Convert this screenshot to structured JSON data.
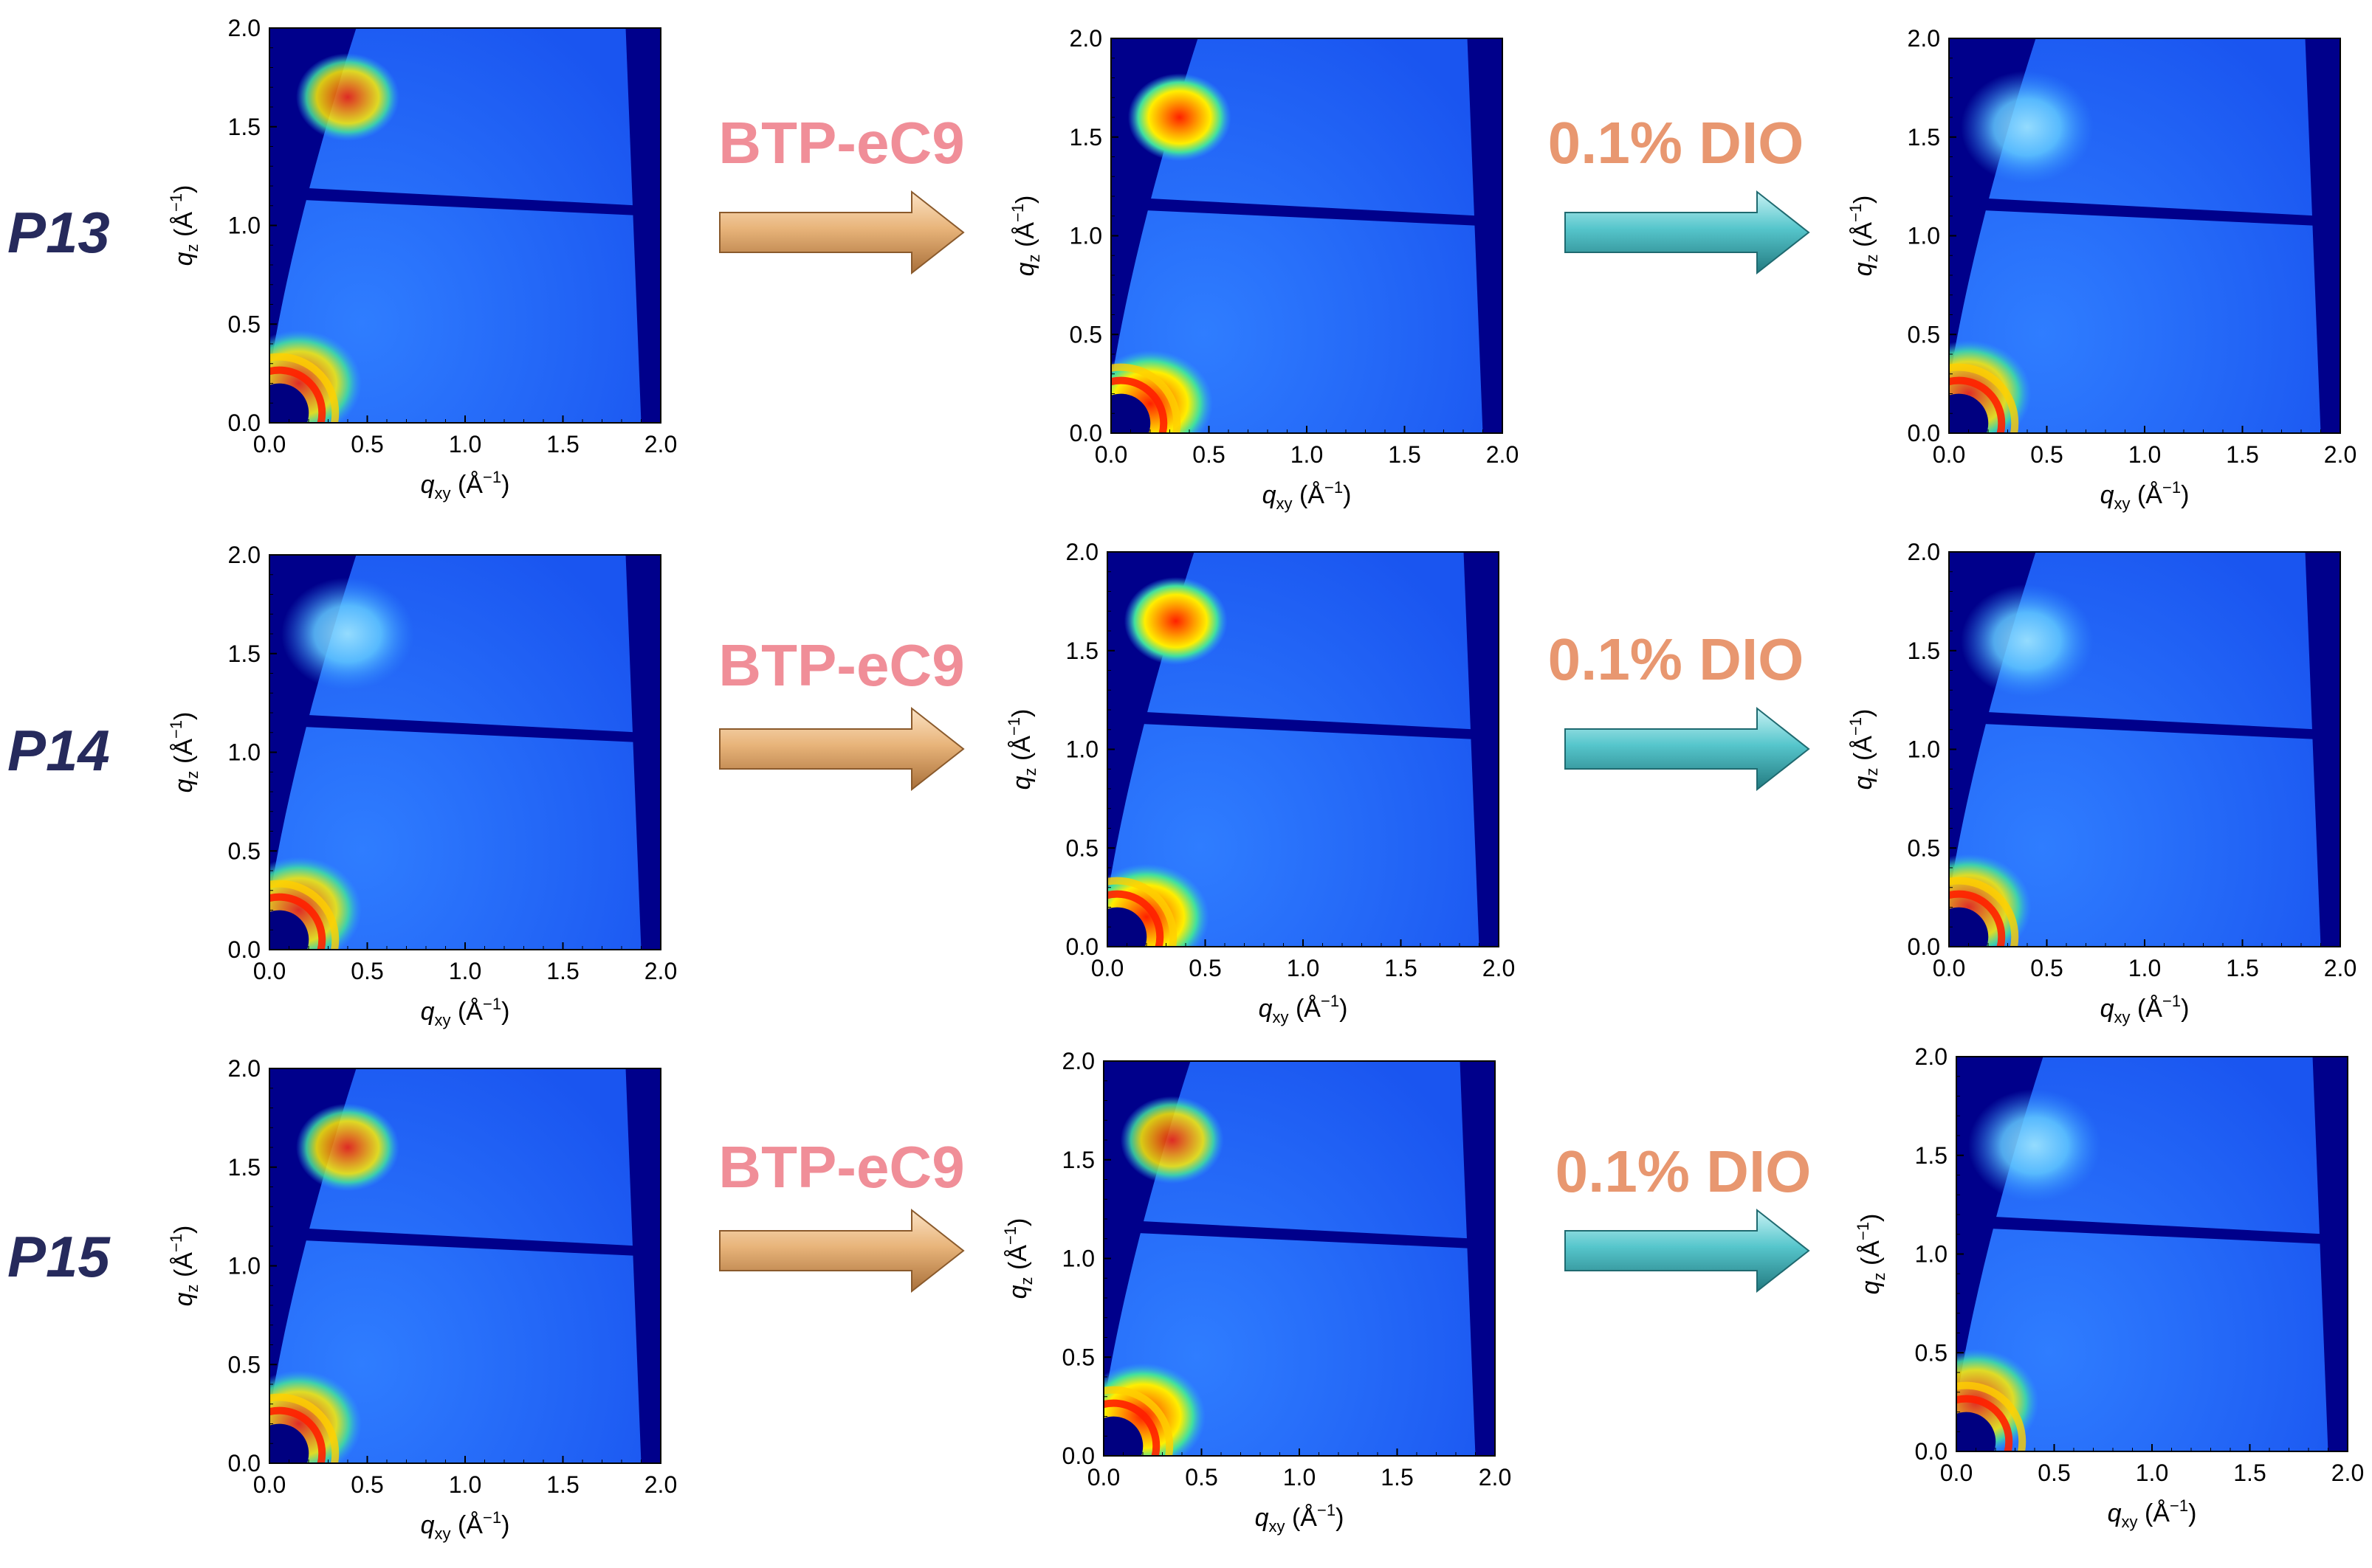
{
  "rows": [
    {
      "label": "P13",
      "step1_label": "BTP-eC9",
      "step2_label": "0.1% DIO"
    },
    {
      "label": "P14",
      "step1_label": "BTP-eC9",
      "step2_label": "0.1% DIO"
    },
    {
      "label": "P15",
      "step1_label": "BTP-eC9",
      "step2_label": "0.1% DIO"
    }
  ],
  "colors": {
    "btp_label": "#f08e98",
    "dio_label": "#e89770",
    "row_label": "#262a5c",
    "arrow_btp": "#e8b47a",
    "arrow_dio": "#56c6cc",
    "map_background": "#00008b",
    "map_field": "#1f63ff"
  },
  "chart_data": [
    {
      "type": "heatmap",
      "xlabel": "q_xy (Å^-1)",
      "ylabel": "q_z (Å^-1)",
      "xlim": [
        0,
        2.0
      ],
      "ylim": [
        0,
        2.0
      ],
      "xticks": [
        "0.0",
        "0.5",
        "1.0",
        "1.5",
        "2.0"
      ],
      "yticks": [
        "0.0",
        "0.5",
        "1.0",
        "1.5",
        "2.0"
      ],
      "colormap": "jet",
      "features": [
        {
          "name": "pi-pi stacking peak",
          "qxy": 0.4,
          "qz": 1.65,
          "intensity": "high"
        },
        {
          "name": "lamellar peaks",
          "qxy": 0.15,
          "qz": 0.2,
          "intensity": "high"
        }
      ]
    },
    {
      "type": "heatmap",
      "xlabel": "q_xy (Å^-1)",
      "ylabel": "q_z (Å^-1)",
      "xlim": [
        0,
        2.0
      ],
      "ylim": [
        0,
        2.0
      ],
      "xticks": [
        "0.0",
        "0.5",
        "1.0",
        "1.5",
        "2.0"
      ],
      "yticks": [
        "0.0",
        "0.5",
        "1.0",
        "1.5",
        "2.0"
      ],
      "colormap": "jet",
      "features": [
        {
          "name": "pi-pi stacking peak",
          "qxy": 0.35,
          "qz": 1.6,
          "intensity": "very high"
        },
        {
          "name": "lamellar peaks",
          "qxy": 0.2,
          "qz": 0.15,
          "intensity": "very high"
        }
      ]
    },
    {
      "type": "heatmap",
      "xlabel": "q_xy (Å^-1)",
      "ylabel": "q_z (Å^-1)",
      "xlim": [
        0,
        2.0
      ],
      "ylim": [
        0,
        2.0
      ],
      "xticks": [
        "0.0",
        "0.5",
        "1.0",
        "1.5",
        "2.0"
      ],
      "yticks": [
        "0.0",
        "0.5",
        "1.0",
        "1.5",
        "2.0"
      ],
      "colormap": "jet",
      "features": [
        {
          "name": "pi-pi stacking peak",
          "qxy": 0.4,
          "qz": 1.55,
          "intensity": "low"
        },
        {
          "name": "lamellar peaks",
          "qxy": 0.1,
          "qz": 0.2,
          "intensity": "high"
        }
      ]
    },
    {
      "type": "heatmap",
      "xlabel": "q_xy (Å^-1)",
      "ylabel": "q_z (Å^-1)",
      "xlim": [
        0,
        2.0
      ],
      "ylim": [
        0,
        2.0
      ],
      "xticks": [
        "0.0",
        "0.5",
        "1.0",
        "1.5",
        "2.0"
      ],
      "yticks": [
        "0.0",
        "0.5",
        "1.0",
        "1.5",
        "2.0"
      ],
      "colormap": "jet",
      "features": [
        {
          "name": "pi-pi stacking peak",
          "qxy": 0.4,
          "qz": 1.6,
          "intensity": "medium"
        },
        {
          "name": "lamellar peaks",
          "qxy": 0.15,
          "qz": 0.2,
          "intensity": "high"
        }
      ]
    },
    {
      "type": "heatmap",
      "xlabel": "q_xy (Å^-1)",
      "ylabel": "q_z (Å^-1)",
      "xlim": [
        0,
        2.0
      ],
      "ylim": [
        0,
        2.0
      ],
      "xticks": [
        "0.0",
        "0.5",
        "1.0",
        "1.5",
        "2.0"
      ],
      "yticks": [
        "0.0",
        "0.5",
        "1.0",
        "1.5",
        "2.0"
      ],
      "colormap": "jet",
      "features": [
        {
          "name": "pi-pi stacking peak",
          "qxy": 0.35,
          "qz": 1.65,
          "intensity": "very high"
        },
        {
          "name": "lamellar peaks",
          "qxy": 0.2,
          "qz": 0.15,
          "intensity": "very high"
        }
      ]
    },
    {
      "type": "heatmap",
      "xlabel": "q_xy (Å^-1)",
      "ylabel": "q_z (Å^-1)",
      "xlim": [
        0,
        2.0
      ],
      "ylim": [
        0,
        2.0
      ],
      "xticks": [
        "0.0",
        "0.5",
        "1.0",
        "1.5",
        "2.0"
      ],
      "yticks": [
        "0.0",
        "0.5",
        "1.0",
        "1.5",
        "2.0"
      ],
      "colormap": "jet",
      "features": [
        {
          "name": "pi-pi stacking peak",
          "qxy": 0.4,
          "qz": 1.55,
          "intensity": "low"
        },
        {
          "name": "lamellar peaks",
          "qxy": 0.1,
          "qz": 0.2,
          "intensity": "high"
        }
      ]
    },
    {
      "type": "heatmap",
      "xlabel": "q_xy (Å^-1)",
      "ylabel": "q_z (Å^-1)",
      "xlim": [
        0,
        2.0
      ],
      "ylim": [
        0,
        2.0
      ],
      "xticks": [
        "0.0",
        "0.5",
        "1.0",
        "1.5",
        "2.0"
      ],
      "yticks": [
        "0.0",
        "0.5",
        "1.0",
        "1.5",
        "2.0"
      ],
      "colormap": "jet",
      "features": [
        {
          "name": "pi-pi stacking peak",
          "qxy": 0.4,
          "qz": 1.6,
          "intensity": "high"
        },
        {
          "name": "lamellar peaks",
          "qxy": 0.15,
          "qz": 0.2,
          "intensity": "high"
        }
      ]
    },
    {
      "type": "heatmap",
      "xlabel": "q_xy (Å^-1)",
      "ylabel": "q_z (Å^-1)",
      "xlim": [
        0,
        2.0
      ],
      "ylim": [
        0,
        2.0
      ],
      "xticks": [
        "0.0",
        "0.5",
        "1.0",
        "1.5",
        "2.0"
      ],
      "yticks": [
        "0.0",
        "0.5",
        "1.0",
        "1.5",
        "2.0"
      ],
      "colormap": "jet",
      "features": [
        {
          "name": "pi-pi stacking peak",
          "qxy": 0.35,
          "qz": 1.6,
          "intensity": "high"
        },
        {
          "name": "lamellar peaks",
          "qxy": 0.2,
          "qz": 0.2,
          "intensity": "very high"
        }
      ]
    },
    {
      "type": "heatmap",
      "xlabel": "q_xy (Å^-1)",
      "ylabel": "q_z (Å^-1)",
      "xlim": [
        0,
        2.0
      ],
      "ylim": [
        0,
        2.0
      ],
      "xticks": [
        "0.0",
        "0.5",
        "1.0",
        "1.5",
        "2.0"
      ],
      "yticks": [
        "0.0",
        "0.5",
        "1.0",
        "1.5",
        "2.0"
      ],
      "colormap": "jet",
      "features": [
        {
          "name": "pi-pi stacking peak",
          "qxy": 0.4,
          "qz": 1.55,
          "intensity": "low"
        },
        {
          "name": "lamellar peaks",
          "qxy": 0.1,
          "qz": 0.25,
          "intensity": "high"
        }
      ]
    }
  ]
}
